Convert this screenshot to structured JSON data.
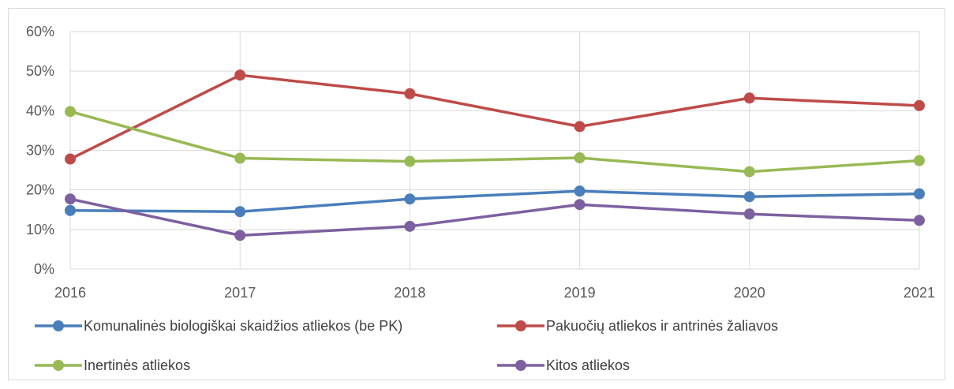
{
  "chart_data": {
    "type": "line",
    "title": "",
    "xlabel": "",
    "ylabel": "",
    "x": [
      "2016",
      "2017",
      "2018",
      "2019",
      "2020",
      "2021"
    ],
    "ylim": [
      0,
      60
    ],
    "y_ticks": [
      0,
      10,
      20,
      30,
      40,
      50,
      60
    ],
    "y_tick_labels": [
      "0%",
      "10%",
      "20%",
      "30%",
      "40%",
      "50%",
      "60%"
    ],
    "grid": true,
    "legend_position": "bottom",
    "series": [
      {
        "name": "Komunalinės biologiškai skaidžios atliekos (be PK)",
        "color": "#4a7ebb",
        "values": [
          14.8,
          14.5,
          17.7,
          19.7,
          18.3,
          19.0
        ]
      },
      {
        "name": "Pakuočių atliekos ir antrinės žaliavos",
        "color": "#be4b48",
        "values": [
          27.8,
          49.0,
          44.3,
          36.0,
          43.2,
          41.3
        ]
      },
      {
        "name": "Inertinės atliekos",
        "color": "#98b954",
        "values": [
          39.8,
          28.0,
          27.2,
          28.1,
          24.6,
          27.4
        ]
      },
      {
        "name": "Kitos atliekos",
        "color": "#7d60a0",
        "values": [
          17.7,
          8.5,
          10.8,
          16.3,
          13.9,
          12.3
        ]
      }
    ]
  }
}
